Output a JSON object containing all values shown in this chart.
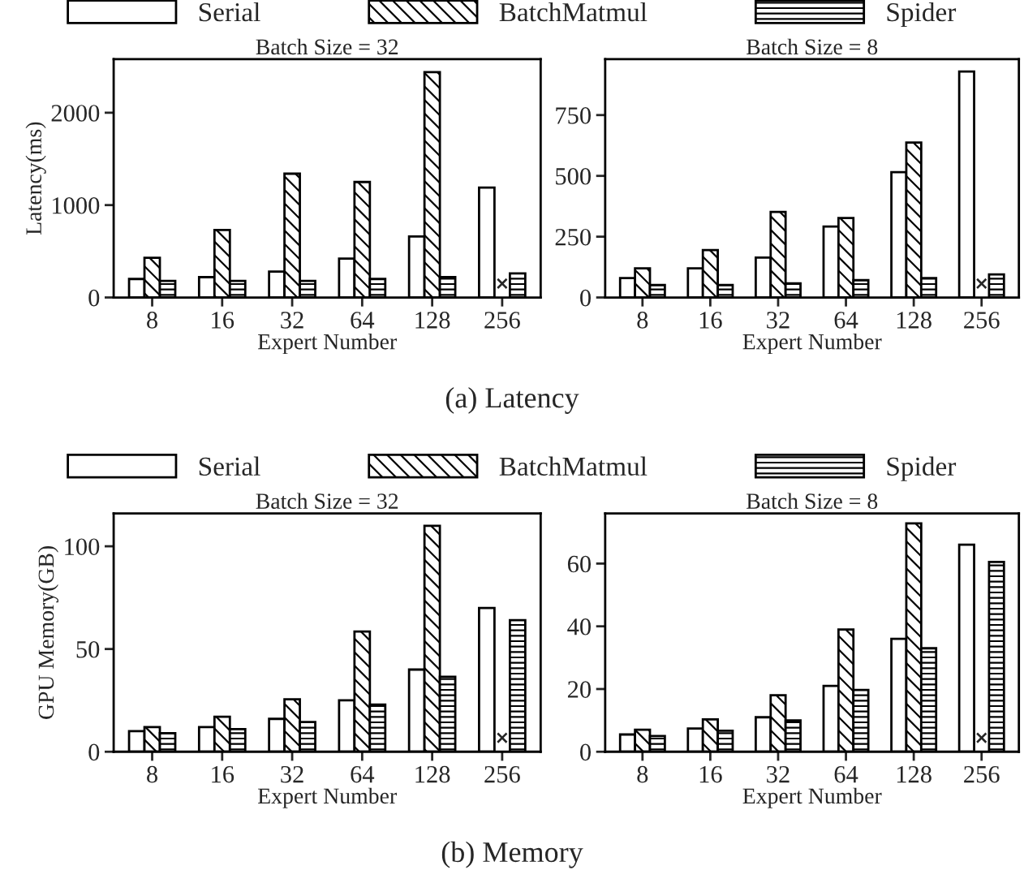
{
  "chart_data": [
    {
      "type": "bar",
      "title": "Batch Size = 32",
      "xlabel": "Expert Number",
      "ylabel": "Latency(ms)",
      "categories": [
        "8",
        "16",
        "32",
        "64",
        "128",
        "256"
      ],
      "series": [
        {
          "name": "Serial",
          "color": "#ffffff",
          "values": [
            200,
            220,
            280,
            420,
            660,
            1190
          ]
        },
        {
          "name": "BatchMatmul",
          "color": "#000000",
          "values": [
            430,
            730,
            1340,
            1250,
            2440,
            null
          ]
        },
        {
          "name": "Spider",
          "color": "#000000",
          "values": [
            180,
            180,
            180,
            200,
            220,
            260
          ]
        }
      ],
      "ylim": [
        0,
        2580
      ],
      "yticks": [
        0,
        1000,
        2000
      ],
      "legend": "top",
      "annotations": [
        {
          "text": "×",
          "x": "256",
          "y": 0
        },
        "(a) Latency"
      ]
    },
    {
      "type": "bar",
      "title": "Batch Size = 8",
      "xlabel": "Expert Number",
      "categories": [
        "8",
        "16",
        "32",
        "64",
        "128",
        "256"
      ],
      "series": [
        {
          "color": "#ffffff",
          "values": [
            80,
            120,
            164,
            292,
            515,
            929
          ]
        },
        {
          "color": "#000000",
          "values": [
            120,
            195,
            352,
            327,
            637,
            null
          ]
        },
        {
          "color": "#000000",
          "values": [
            51,
            51,
            58,
            71,
            80,
            95
          ]
        }
      ],
      "ylim": [
        0,
        980
      ],
      "yticks": [
        0,
        250,
        500,
        750
      ],
      "annotations": [
        {
          "text": "×",
          "x": "256",
          "y": 0
        }
      ]
    },
    {
      "type": "bar",
      "title": "Batch Size = 32",
      "xlabel": "Expert Number",
      "ylabel": "GPU Memory(GB)",
      "categories": [
        "8",
        "16",
        "32",
        "64",
        "128",
        "256"
      ],
      "series": [
        {
          "name": "Serial",
          "color": "#ffffff",
          "values": [
            10,
            12,
            16,
            25,
            40,
            70
          ]
        },
        {
          "name": "BatchMatmul",
          "color": "#000000",
          "values": [
            12,
            17,
            25.5,
            58.5,
            110,
            null
          ]
        },
        {
          "name": "Spider",
          "color": "#000000",
          "values": [
            9,
            11,
            14.5,
            23,
            36.5,
            64
          ]
        }
      ],
      "ylim": [
        0,
        116
      ],
      "yticks": [
        0,
        50,
        100
      ],
      "legend": "top",
      "annotations": [
        {
          "text": "×",
          "x": "256",
          "y": 0
        },
        "(b) Memory"
      ]
    },
    {
      "type": "bar",
      "title": "Batch Size = 8",
      "xlabel": "Expert Number",
      "categories": [
        "8",
        "16",
        "32",
        "64",
        "128",
        "256"
      ],
      "series": [
        {
          "color": "#ffffff",
          "values": [
            5.5,
            7.4,
            11,
            21,
            36,
            66
          ]
        },
        {
          "color": "#000000",
          "values": [
            7,
            10.3,
            18,
            39,
            72.8,
            null
          ]
        },
        {
          "color": "#000000",
          "values": [
            5,
            6.7,
            10,
            19.7,
            33,
            60.5
          ]
        }
      ],
      "ylim": [
        0,
        76
      ],
      "yticks": [
        0,
        20,
        40,
        60
      ],
      "annotations": [
        {
          "text": "×",
          "x": "256",
          "y": 0
        }
      ]
    }
  ]
}
